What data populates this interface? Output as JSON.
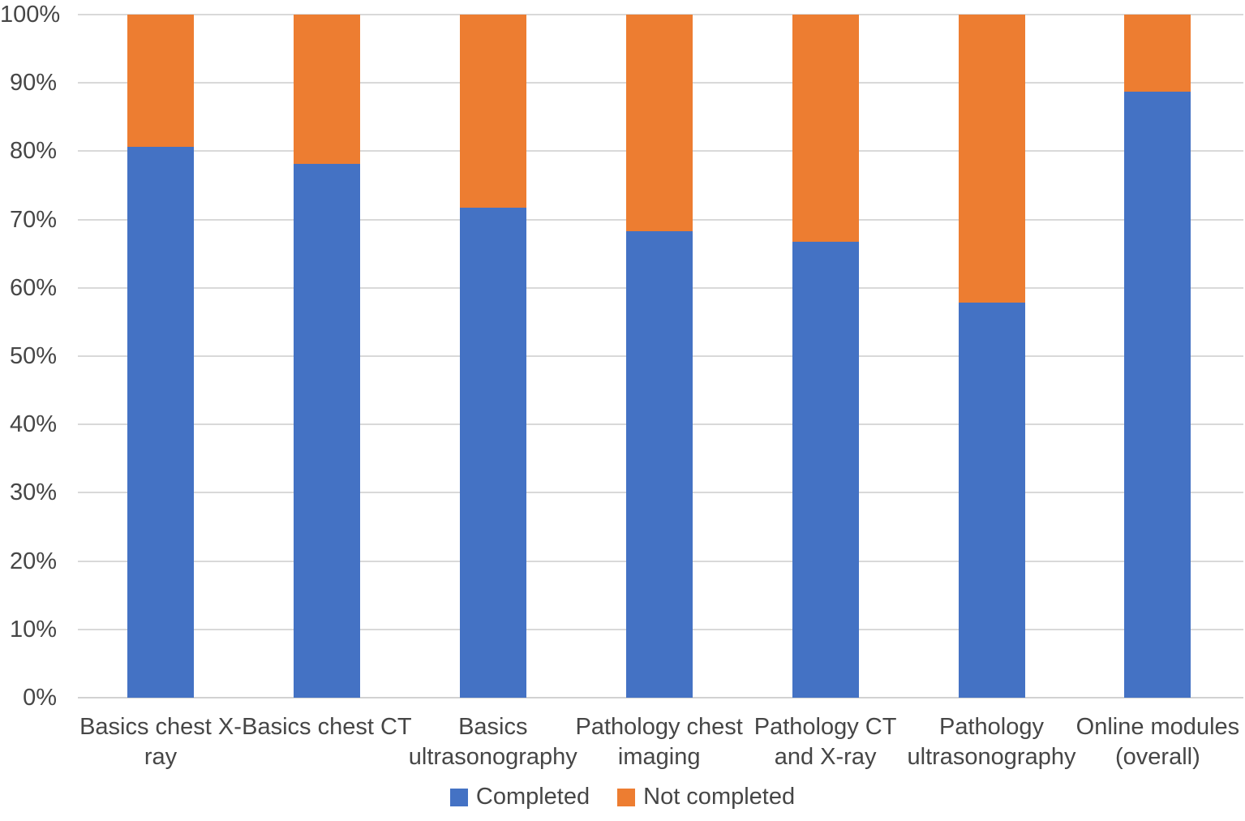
{
  "chart_data": {
    "type": "bar",
    "variant": "stacked-100-percent",
    "title": "",
    "xlabel": "",
    "ylabel": "",
    "categories": [
      "Basics chest X-ray",
      "Basics chest CT",
      "Basics ultrasonography",
      "Pathology chest imaging",
      "Pathology CT and X-ray",
      "Pathology ultrasonography",
      "Online modules (overall)"
    ],
    "category_label_lines": [
      [
        "Basics chest X-",
        "ray"
      ],
      [
        "Basics chest CT"
      ],
      [
        "Basics",
        "ultrasonography"
      ],
      [
        "Pathology chest",
        "imaging"
      ],
      [
        "Pathology CT",
        "and X-ray"
      ],
      [
        "Pathology",
        "ultrasonography"
      ],
      [
        "Online modules",
        "(overall)"
      ]
    ],
    "series": [
      {
        "name": "Completed",
        "color": "#4472C4",
        "values": [
          80.6,
          78.1,
          71.7,
          68.3,
          66.8,
          57.8,
          88.7
        ]
      },
      {
        "name": "Not completed",
        "color": "#ED7D31",
        "values": [
          19.4,
          21.9,
          28.3,
          31.7,
          33.2,
          42.2,
          11.3
        ]
      }
    ],
    "y_axis": {
      "min": 0,
      "max": 100,
      "step": 10,
      "unit": "%",
      "tick_labels": [
        "0%",
        "10%",
        "20%",
        "30%",
        "40%",
        "50%",
        "60%",
        "70%",
        "80%",
        "90%",
        "100%"
      ]
    },
    "grid": true,
    "legend": {
      "position": "bottom",
      "entries": [
        "Completed",
        "Not completed"
      ]
    }
  },
  "colors": {
    "completed": "#4472C4",
    "not_completed": "#ED7D31",
    "gridline": "#D9D9D9",
    "axis_line": "#D2D2D2",
    "label_text": "#464646",
    "background": "#FFFFFF"
  }
}
